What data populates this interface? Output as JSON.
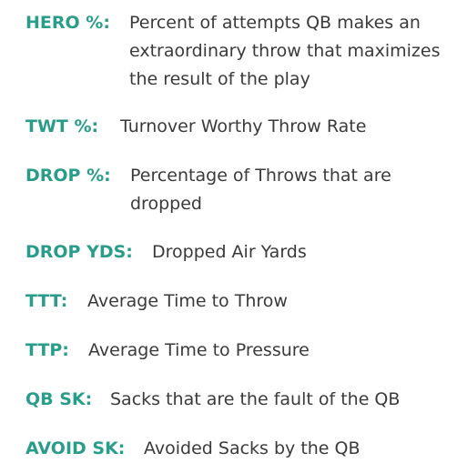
{
  "glossary": {
    "entries": [
      {
        "term": "HERO %:",
        "definition_lines": [
          "Percent of attempts QB makes an",
          "extraordinary throw that maximizes",
          "the result of the play"
        ]
      },
      {
        "term": "TWT %:",
        "definition_lines": [
          "Turnover Worthy Throw Rate"
        ]
      },
      {
        "term": "DROP %:",
        "definition_lines": [
          "Percentage of Throws that are",
          "dropped"
        ]
      },
      {
        "term": "DROP YDS:",
        "definition_lines": [
          "Dropped Air Yards"
        ]
      },
      {
        "term": "TTT:",
        "definition_lines": [
          "Average Time to Throw"
        ]
      },
      {
        "term": "TTP:",
        "definition_lines": [
          "Average Time to Pressure"
        ]
      },
      {
        "term": "QB SK:",
        "definition_lines": [
          "Sacks that are the fault of the QB"
        ]
      },
      {
        "term": "AVOID SK:",
        "definition_lines": [
          "Avoided Sacks by the QB"
        ]
      }
    ]
  },
  "colors": {
    "term": "#2a9d8a",
    "definition": "#3a3a3a",
    "background": "#ffffff"
  }
}
